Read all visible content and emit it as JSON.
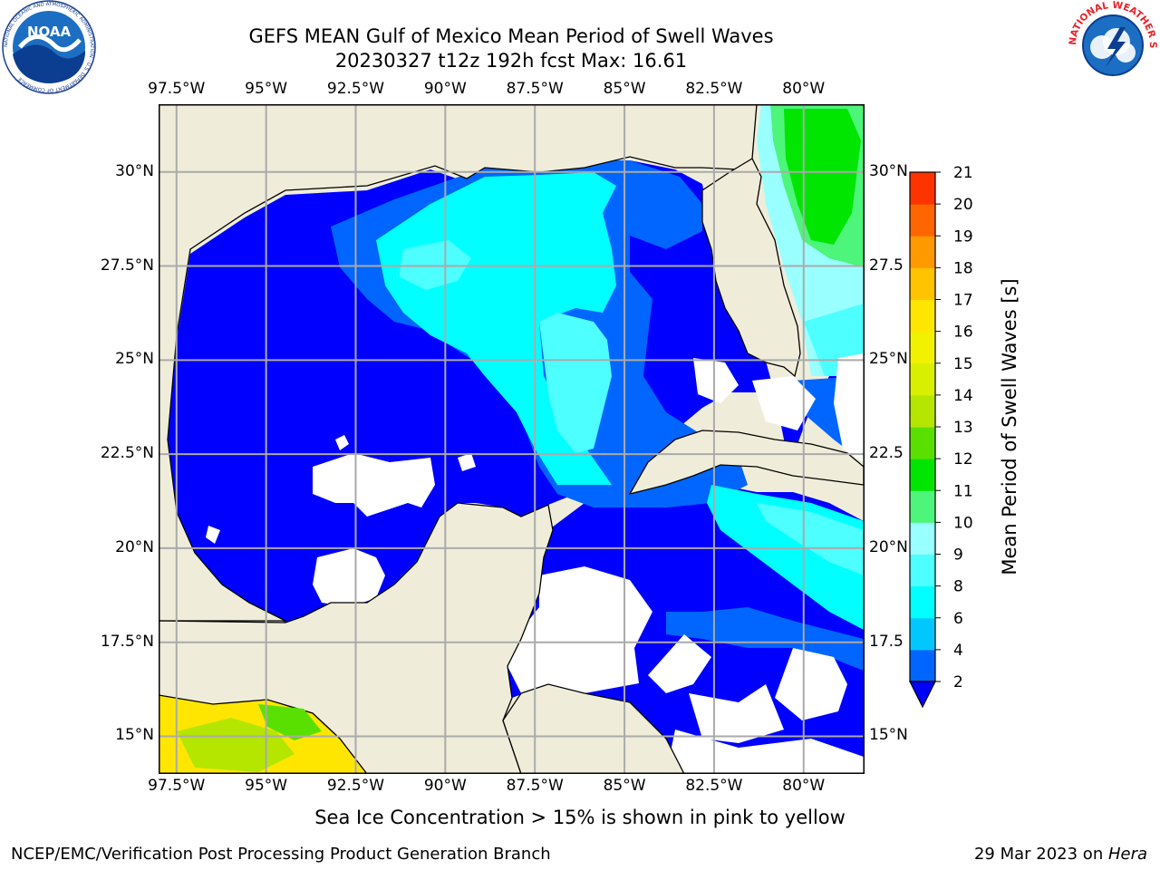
{
  "title": {
    "line1": "GEFS MEAN Gulf of Mexico Mean Period of Swell Waves",
    "line2": "20230327 t12z 192h fcst   Max: 16.61"
  },
  "map": {
    "lon_labels": [
      "97.5°W",
      "95°W",
      "92.5°W",
      "90°W",
      "87.5°W",
      "85°W",
      "82.5°W",
      "80°W"
    ],
    "lon_values": [
      -97.5,
      -95,
      -92.5,
      -90,
      -87.5,
      -85,
      -82.5,
      -80
    ],
    "lat_labels_left": [
      "30°N",
      "27.5°N",
      "25°N",
      "22.5°N",
      "20°N",
      "17.5°N",
      "15°N"
    ],
    "lat_labels_right": [
      "30°N",
      "27.5",
      "25°N",
      "22.5",
      "20°N",
      "17.5",
      "15°N"
    ],
    "lat_values": [
      30,
      27.5,
      25,
      22.5,
      20,
      17.5,
      15
    ],
    "lon_range": [
      -98,
      -78.3
    ],
    "lat_range": [
      14,
      31.8
    ],
    "land_color": "#efedda",
    "grid_color": "#aaaaaa"
  },
  "colorbar": {
    "label": "Mean Period of Swell Waves [s]",
    "ticks": [
      "2",
      "4",
      "6",
      "8",
      "9",
      "10",
      "11",
      "12",
      "13",
      "14",
      "15",
      "16",
      "17",
      "18",
      "19",
      "20",
      "21"
    ],
    "levels": [
      2,
      4,
      6,
      8,
      9,
      10,
      11,
      12,
      13,
      14,
      15,
      16,
      17,
      18,
      19,
      20,
      21
    ],
    "colors": [
      "#0066ff",
      "#00c8ff",
      "#00ffff",
      "#4dffff",
      "#99ffff",
      "#4df57a",
      "#00e600",
      "#5ae000",
      "#b4e600",
      "#d8ef00",
      "#f2f200",
      "#ffe600",
      "#ffc300",
      "#ff9900",
      "#ff6600",
      "#ff3300",
      "#ff0000"
    ],
    "underflow_color": "#0000ff"
  },
  "note": "Sea Ice Concentration > 15% is shown in pink to yellow",
  "footer": {
    "left": "NCEP/EMC/Verification Post Processing Product Generation Branch",
    "date": "29 Mar 2023 on ",
    "machine": "Hera"
  },
  "logos": {
    "noaa_text": "NOAA",
    "noaa_ring": "NATIONAL OCEANIC AND ATMOSPHERIC ADMINISTRATION · U.S. DEPARTMENT OF COMMERCE",
    "nws_ring": "NATIONAL WEATHER SERVICE"
  }
}
